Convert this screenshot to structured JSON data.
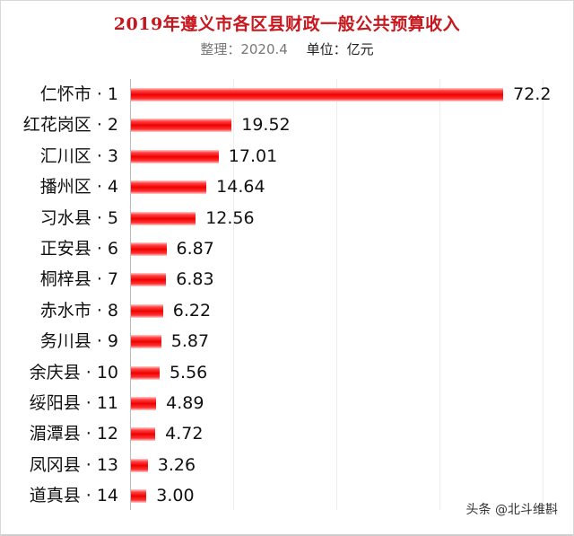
{
  "header": {
    "title": "2019年遵义市各区县财政一般公共预算收入",
    "compiled": "整理：2020.4",
    "unit": "单位：亿元"
  },
  "watermark": "头条 @北斗维斟",
  "chart_data": {
    "type": "bar",
    "orientation": "horizontal",
    "title": "2019年遵义市各区县财政一般公共预算收入",
    "subtitle": "整理：2020.4  单位：亿元",
    "xlabel": "",
    "ylabel": "",
    "unit": "亿元",
    "xlim": [
      0,
      80
    ],
    "grid": true,
    "gridlines_x": [
      0,
      20,
      40,
      60,
      80
    ],
    "legend": null,
    "bar_color": "#e60012",
    "categories": [
      "仁怀市 · 1",
      "红花岗区 · 2",
      "汇川区 · 3",
      "播州区 · 4",
      "习水县 · 5",
      "正安县 · 6",
      "桐梓县 · 7",
      "赤水市 · 8",
      "务川县 · 9",
      "余庆县 · 10",
      "绥阳县 · 11",
      "湄潭县 · 12",
      "凤冈县 · 13",
      "道真县 · 14"
    ],
    "values": [
      72.2,
      19.52,
      17.01,
      14.64,
      12.56,
      6.87,
      6.83,
      6.22,
      5.87,
      5.56,
      4.89,
      4.72,
      3.26,
      3.0
    ],
    "value_labels": [
      "72.2",
      "19.52",
      "17.01",
      "14.64",
      "12.56",
      "6.87",
      "6.83",
      "6.22",
      "5.87",
      "5.56",
      "4.89",
      "4.72",
      "3.26",
      "3.00"
    ]
  }
}
